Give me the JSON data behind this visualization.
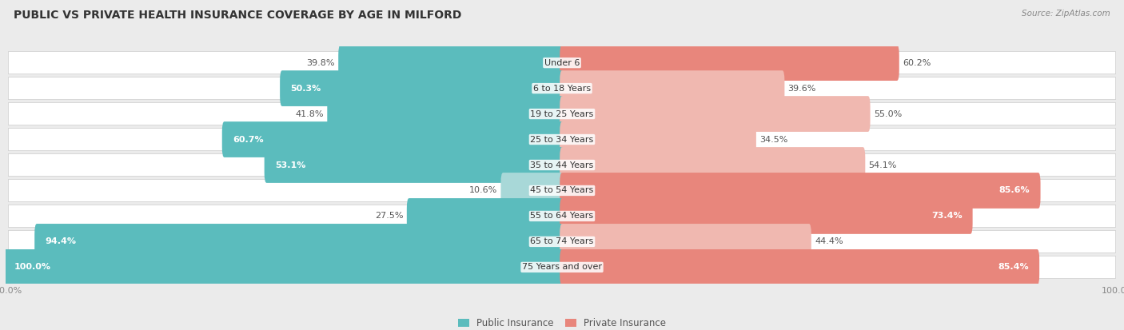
{
  "title": "PUBLIC VS PRIVATE HEALTH INSURANCE COVERAGE BY AGE IN MILFORD",
  "source": "Source: ZipAtlas.com",
  "categories": [
    "Under 6",
    "6 to 18 Years",
    "19 to 25 Years",
    "25 to 34 Years",
    "35 to 44 Years",
    "45 to 54 Years",
    "55 to 64 Years",
    "65 to 74 Years",
    "75 Years and over"
  ],
  "public_values": [
    39.8,
    50.3,
    41.8,
    60.7,
    53.1,
    10.6,
    27.5,
    94.4,
    100.0
  ],
  "private_values": [
    60.2,
    39.6,
    55.0,
    34.5,
    54.1,
    85.6,
    73.4,
    44.4,
    85.4
  ],
  "public_color": "#5bbcbd",
  "private_color": "#e8867c",
  "public_color_light": "#a8d8d8",
  "private_color_light": "#f0b8b0",
  "bg_color": "#ebebeb",
  "title_fontsize": 10,
  "label_fontsize": 8,
  "tick_fontsize": 8,
  "source_fontsize": 7.5
}
